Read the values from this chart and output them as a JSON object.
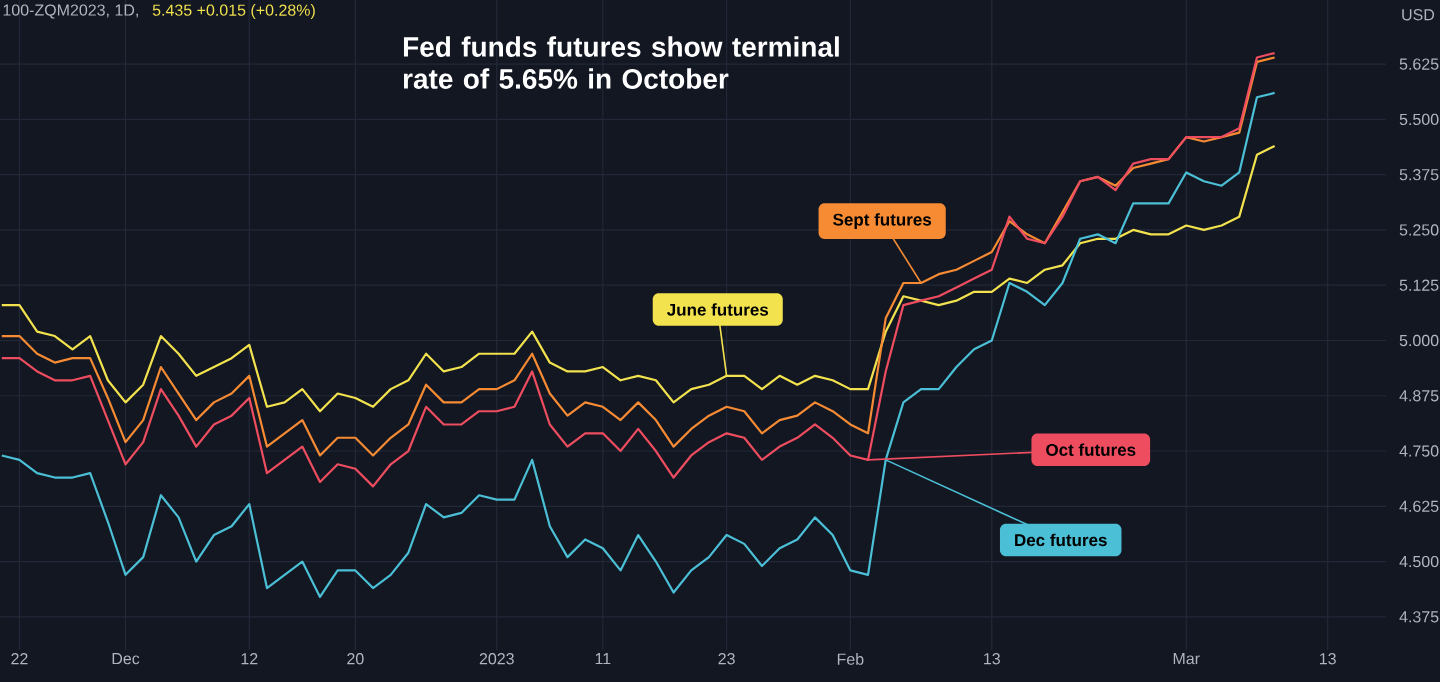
{
  "chart_data": {
    "type": "line",
    "title": "Fed funds futures show terminal rate of 5.65% in October",
    "ylabel": "USD",
    "annotations": [
      "100-ZQM2023, 1D,",
      "5.435 +0.015 (+0.28%)"
    ],
    "categories": [
      null,
      "22",
      null,
      null,
      null,
      null,
      null,
      "Dec",
      null,
      null,
      null,
      null,
      null,
      null,
      "12",
      null,
      null,
      null,
      null,
      null,
      "20",
      null,
      null,
      null,
      null,
      null,
      null,
      null,
      "2023",
      null,
      null,
      null,
      null,
      null,
      "11",
      null,
      null,
      null,
      null,
      null,
      null,
      "23",
      null,
      null,
      null,
      null,
      null,
      null,
      "Feb",
      null,
      null,
      null,
      null,
      null,
      null,
      null,
      "13",
      null,
      null,
      null,
      null,
      null,
      null,
      null,
      null,
      null,
      null,
      "Mar",
      null,
      null,
      null,
      null,
      null,
      null,
      null,
      "13",
      null,
      null
    ],
    "series": [
      {
        "name": "June futures",
        "color": "#f2e24e",
        "values": [
          5.08,
          5.08,
          5.02,
          5.01,
          4.98,
          5.01,
          4.91,
          4.86,
          4.9,
          5.01,
          4.97,
          4.92,
          4.94,
          4.96,
          4.99,
          4.85,
          4.86,
          4.89,
          4.84,
          4.88,
          4.87,
          4.85,
          4.89,
          4.91,
          4.97,
          4.93,
          4.94,
          4.97,
          4.97,
          4.97,
          5.02,
          4.95,
          4.93,
          4.93,
          4.94,
          4.91,
          4.92,
          4.91,
          4.86,
          4.89,
          4.9,
          4.92,
          4.92,
          4.89,
          4.92,
          4.9,
          4.92,
          4.91,
          4.89,
          4.89,
          5.02,
          5.1,
          5.09,
          5.08,
          5.09,
          5.11,
          5.11,
          5.14,
          5.13,
          5.16,
          5.17,
          5.22,
          5.23,
          5.23,
          5.25,
          5.24,
          5.24,
          5.26,
          5.25,
          5.26,
          5.28,
          5.42,
          5.44,
          null,
          null,
          null,
          null,
          null
        ]
      },
      {
        "name": "Sept futures",
        "color": "#f68b34",
        "values": [
          5.01,
          5.01,
          4.97,
          4.95,
          4.96,
          4.96,
          4.87,
          4.77,
          4.82,
          4.94,
          4.88,
          4.82,
          4.86,
          4.88,
          4.92,
          4.76,
          4.79,
          4.82,
          4.74,
          4.78,
          4.78,
          4.74,
          4.78,
          4.81,
          4.9,
          4.86,
          4.86,
          4.89,
          4.89,
          4.91,
          4.97,
          4.88,
          4.83,
          4.86,
          4.85,
          4.82,
          4.86,
          4.82,
          4.76,
          4.8,
          4.83,
          4.85,
          4.84,
          4.79,
          4.82,
          4.83,
          4.86,
          4.84,
          4.81,
          4.79,
          5.05,
          5.13,
          5.13,
          5.15,
          5.16,
          5.18,
          5.2,
          5.27,
          5.24,
          5.22,
          5.29,
          5.36,
          5.37,
          5.35,
          5.39,
          5.4,
          5.41,
          5.46,
          5.45,
          5.46,
          5.47,
          5.63,
          5.64,
          null,
          null,
          null,
          null,
          null
        ]
      },
      {
        "name": "Oct futures",
        "color": "#ee4d60",
        "values": [
          4.96,
          4.96,
          4.93,
          4.91,
          4.91,
          4.92,
          4.82,
          4.72,
          4.77,
          4.89,
          4.83,
          4.76,
          4.81,
          4.83,
          4.87,
          4.7,
          4.73,
          4.76,
          4.68,
          4.72,
          4.71,
          4.67,
          4.72,
          4.75,
          4.85,
          4.81,
          4.81,
          4.84,
          4.84,
          4.85,
          4.93,
          4.81,
          4.76,
          4.79,
          4.79,
          4.75,
          4.8,
          4.75,
          4.69,
          4.74,
          4.77,
          4.79,
          4.78,
          4.73,
          4.76,
          4.78,
          4.81,
          4.78,
          4.74,
          4.73,
          4.93,
          5.08,
          5.09,
          5.1,
          5.12,
          5.14,
          5.16,
          5.28,
          5.23,
          5.22,
          5.28,
          5.36,
          5.37,
          5.34,
          5.4,
          5.41,
          5.41,
          5.46,
          5.46,
          5.46,
          5.48,
          5.64,
          5.65,
          null,
          null,
          null,
          null,
          null
        ]
      },
      {
        "name": "Dec futures",
        "color": "#4bbfd6",
        "values": [
          4.74,
          4.73,
          4.7,
          4.69,
          4.69,
          4.7,
          4.59,
          4.47,
          4.51,
          4.65,
          4.6,
          4.5,
          4.56,
          4.58,
          4.63,
          4.44,
          4.47,
          4.5,
          4.42,
          4.48,
          4.48,
          4.44,
          4.47,
          4.52,
          4.63,
          4.6,
          4.61,
          4.65,
          4.64,
          4.64,
          4.73,
          4.58,
          4.51,
          4.55,
          4.53,
          4.48,
          4.56,
          4.5,
          4.43,
          4.48,
          4.51,
          4.56,
          4.54,
          4.49,
          4.53,
          4.55,
          4.6,
          4.56,
          4.48,
          4.47,
          4.73,
          4.86,
          4.89,
          4.89,
          4.94,
          4.98,
          5.0,
          5.13,
          5.11,
          5.08,
          5.13,
          5.23,
          5.24,
          5.22,
          5.31,
          5.31,
          5.31,
          5.38,
          5.36,
          5.35,
          5.38,
          5.55,
          5.56,
          null,
          null,
          null,
          null,
          null
        ]
      }
    ],
    "ylim": [
      4.3,
      5.77
    ],
    "yticks": [
      4.375,
      {
        "value": 4.5,
        "label": "4.500"
      },
      4.625,
      {
        "value": 4.75,
        "label": "4.750"
      },
      4.875,
      {
        "value": 5.0,
        "label": "5.000"
      },
      5.125,
      {
        "value": 5.25,
        "label": "5.250"
      },
      5.375,
      {
        "value": 5.5,
        "label": "5.500"
      },
      5.625
    ],
    "grid": true
  }
}
